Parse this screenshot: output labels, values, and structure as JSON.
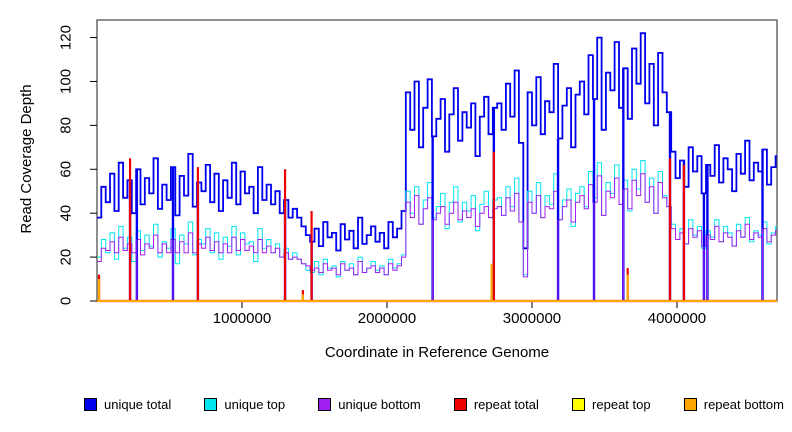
{
  "chart_data": {
    "type": "line",
    "step": true,
    "title": "",
    "xlabel": "Coordinate in Reference Genome",
    "ylabel": "Read Coverage Depth",
    "xlim": [
      0,
      4690000
    ],
    "ylim": [
      0,
      128
    ],
    "grid": false,
    "legend_position": "bottom",
    "x_ticks": [
      1000000,
      2000000,
      3000000,
      4000000
    ],
    "x_tick_labels": [
      "1000000",
      "2000000",
      "3000000",
      "4000000"
    ],
    "y_ticks": [
      0,
      20,
      40,
      60,
      80,
      100,
      120
    ],
    "y_tick_labels": [
      "0",
      "20",
      "40",
      "60",
      "80",
      "100",
      "120"
    ],
    "x_step": 30000,
    "series": [
      {
        "name": "unique total",
        "color": "#0000EE",
        "width": 1.8,
        "values": [
          38,
          52,
          45,
          58,
          41,
          63,
          47,
          55,
          40,
          60,
          44,
          56,
          49,
          65,
          42,
          53,
          46,
          61,
          39,
          57,
          48,
          67,
          43,
          54,
          50,
          62,
          45,
          58,
          41,
          55,
          47,
          63,
          44,
          59,
          49,
          52,
          40,
          61,
          46,
          53,
          44,
          50,
          40,
          46,
          38,
          42,
          38,
          34,
          30,
          27,
          33,
          25,
          36,
          29,
          31,
          23,
          35,
          28,
          32,
          24,
          38,
          26,
          30,
          34,
          27,
          31,
          24,
          36,
          29,
          33,
          41,
          95,
          78,
          100,
          70,
          88,
          101,
          75,
          83,
          92,
          68,
          85,
          97,
          73,
          86,
          79,
          90,
          66,
          84,
          93,
          76,
          88,
          90,
          78,
          99,
          84,
          105,
          72,
          24,
          95,
          80,
          102,
          76,
          91,
          86,
          108,
          74,
          89,
          97,
          70,
          94,
          100,
          85,
          112,
          92,
          120,
          78,
          104,
          96,
          118,
          88,
          106,
          83,
          115,
          99,
          122,
          90,
          108,
          80,
          113,
          95,
          86,
          68,
          56,
          64,
          52,
          70,
          59,
          66,
          49,
          62,
          57,
          71,
          54,
          65,
          60,
          50,
          67,
          58,
          73,
          55,
          63,
          59,
          69,
          53,
          61,
          66
        ]
      },
      {
        "name": "unique top",
        "color": "#00E5EE",
        "width": 1,
        "values": [
          20,
          28,
          22,
          31,
          19,
          34,
          24,
          29,
          18,
          32,
          23,
          30,
          25,
          35,
          20,
          27,
          24,
          33,
          17,
          30,
          26,
          36,
          21,
          28,
          26,
          33,
          22,
          31,
          19,
          29,
          25,
          34,
          21,
          31,
          26,
          27,
          18,
          33,
          24,
          28,
          22,
          26,
          20,
          24,
          19,
          22,
          19,
          17,
          14,
          13,
          18,
          12,
          19,
          15,
          16,
          11,
          18,
          14,
          17,
          12,
          20,
          13,
          15,
          18,
          14,
          16,
          12,
          19,
          15,
          17,
          21,
          50,
          40,
          52,
          35,
          46,
          54,
          38,
          43,
          49,
          33,
          45,
          52,
          36,
          45,
          41,
          48,
          32,
          44,
          50,
          38,
          46,
          47,
          39,
          52,
          43,
          56,
          36,
          12,
          50,
          40,
          54,
          38,
          48,
          44,
          58,
          37,
          46,
          51,
          34,
          49,
          52,
          43,
          59,
          47,
          63,
          39,
          54,
          49,
          62,
          44,
          55,
          41,
          60,
          51,
          64,
          45,
          56,
          40,
          59,
          48,
          43,
          35,
          28,
          33,
          26,
          37,
          30,
          34,
          24,
          32,
          29,
          37,
          27,
          34,
          31,
          25,
          35,
          29,
          38,
          27,
          32,
          30,
          36,
          26,
          31,
          34
        ]
      },
      {
        "name": "unique bottom",
        "color": "#A020F0",
        "width": 1,
        "values": [
          18,
          24,
          23,
          27,
          22,
          29,
          23,
          26,
          22,
          28,
          21,
          26,
          24,
          30,
          22,
          26,
          22,
          28,
          22,
          27,
          22,
          31,
          22,
          26,
          24,
          29,
          23,
          27,
          22,
          26,
          22,
          29,
          23,
          28,
          23,
          25,
          22,
          28,
          22,
          25,
          22,
          24,
          20,
          22,
          19,
          20,
          19,
          17,
          16,
          14,
          15,
          13,
          17,
          14,
          15,
          12,
          17,
          14,
          15,
          12,
          18,
          13,
          15,
          16,
          13,
          15,
          12,
          17,
          14,
          16,
          20,
          45,
          38,
          48,
          35,
          42,
          47,
          37,
          40,
          43,
          35,
          40,
          45,
          37,
          41,
          38,
          42,
          34,
          40,
          43,
          38,
          42,
          43,
          39,
          47,
          41,
          49,
          36,
          11,
          45,
          40,
          48,
          38,
          43,
          42,
          50,
          37,
          43,
          46,
          36,
          45,
          48,
          42,
          53,
          45,
          57,
          39,
          50,
          47,
          56,
          44,
          51,
          42,
          55,
          48,
          58,
          45,
          52,
          40,
          54,
          47,
          43,
          33,
          28,
          31,
          26,
          33,
          29,
          32,
          25,
          30,
          28,
          34,
          27,
          31,
          29,
          25,
          32,
          29,
          35,
          28,
          31,
          29,
          33,
          27,
          30,
          32
        ]
      }
    ],
    "zero_drops": [
      228000,
      275000,
      524000,
      696000,
      1297000,
      1480000,
      2315000,
      2737000,
      3180000,
      3428000,
      3630000,
      3952000,
      4048000,
      4186000,
      4210000,
      4590000
    ],
    "spike_series": [
      {
        "name": "repeat total",
        "color": "#EE0000",
        "width": 2.2,
        "baseline": 0,
        "spikes": [
          {
            "x": 14000,
            "v": 12
          },
          {
            "x": 228000,
            "v": 65
          },
          {
            "x": 696000,
            "v": 61
          },
          {
            "x": 1297000,
            "v": 60
          },
          {
            "x": 1420000,
            "v": 5
          },
          {
            "x": 1480000,
            "v": 41
          },
          {
            "x": 2737000,
            "v": 68
          },
          {
            "x": 3660000,
            "v": 15
          },
          {
            "x": 3952000,
            "v": 65
          },
          {
            "x": 4048000,
            "v": 62
          }
        ]
      },
      {
        "name": "repeat top",
        "color": "#FFFF00",
        "width": 1.4,
        "baseline": 0,
        "spikes": []
      },
      {
        "name": "repeat bottom",
        "color": "#FFA500",
        "width": 2,
        "baseline": 0,
        "spikes": [
          {
            "x": 14000,
            "v": 10
          },
          {
            "x": 1420000,
            "v": 3
          },
          {
            "x": 2722000,
            "v": 17
          },
          {
            "x": 3660000,
            "v": 12
          }
        ]
      }
    ],
    "legend": [
      {
        "label": "unique total",
        "color": "#0000EE"
      },
      {
        "label": "unique top",
        "color": "#00E5EE"
      },
      {
        "label": "unique bottom",
        "color": "#A020F0"
      },
      {
        "label": "repeat total",
        "color": "#EE0000"
      },
      {
        "label": "repeat top",
        "color": "#FFFF00"
      },
      {
        "label": "repeat bottom",
        "color": "#FFA500"
      }
    ]
  }
}
